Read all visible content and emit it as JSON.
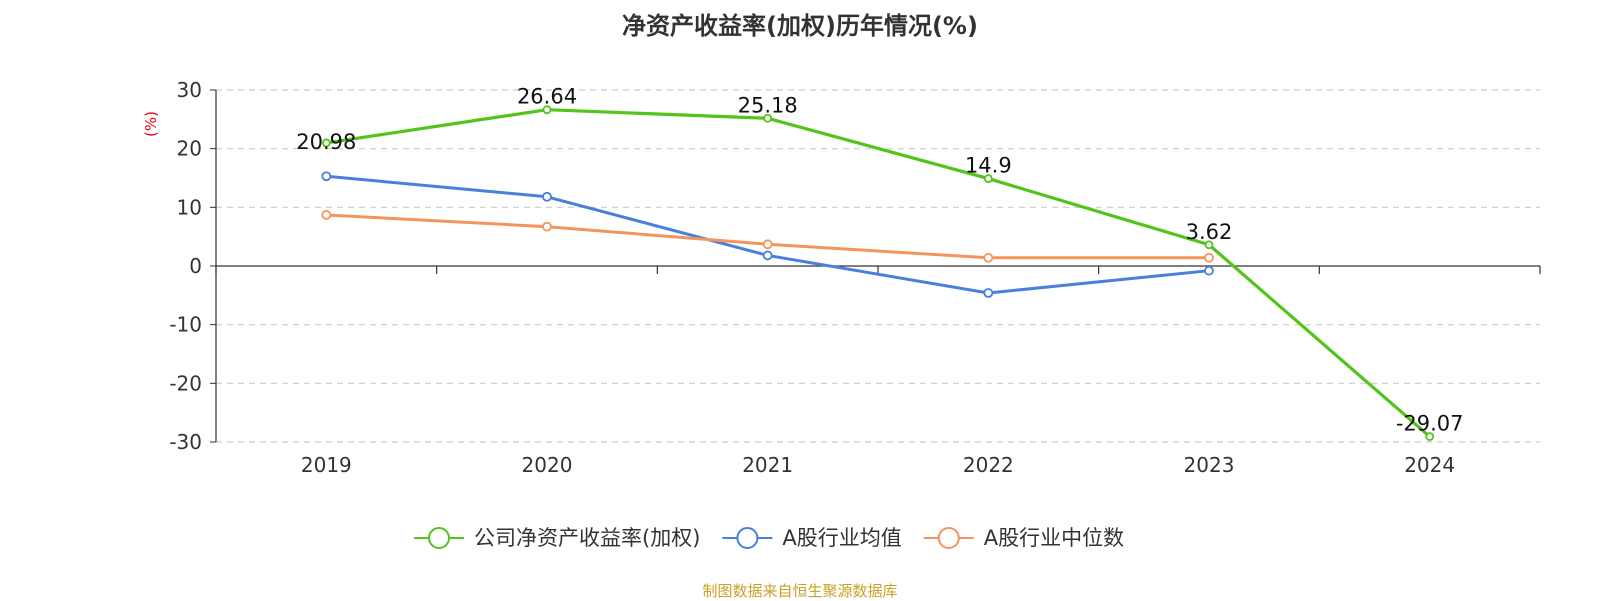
{
  "chart_data": {
    "type": "line",
    "title": "净资产收益率(加权)历年情况(%)",
    "ylabel": "(%)",
    "xlabel": "",
    "categories": [
      "2019",
      "2020",
      "2021",
      "2022",
      "2023",
      "2024"
    ],
    "ylim": [
      -30,
      30
    ],
    "yticks": [
      30,
      20,
      10,
      0,
      -10,
      -20,
      -30
    ],
    "grid": true,
    "legend_position": "bottom",
    "series": [
      {
        "name": "公司净资产收益率(加权)",
        "color": "#52c41a",
        "values": [
          20.98,
          26.64,
          25.18,
          14.9,
          3.62,
          -29.07
        ],
        "labels": [
          "20.98",
          "26.64",
          "25.18",
          "14.9",
          "3.62",
          "-29.07"
        ]
      },
      {
        "name": "A股行业均值",
        "color": "#4a7fdc",
        "values": [
          15.3,
          11.8,
          1.8,
          -4.6,
          -0.8,
          null
        ]
      },
      {
        "name": "A股行业中位数",
        "color": "#f5935c",
        "values": [
          8.7,
          6.7,
          3.7,
          1.4,
          1.4,
          null
        ]
      }
    ]
  },
  "source_note": "制图数据来自恒生聚源数据库",
  "colors": {
    "axis": "#333333",
    "grid": "#cccccc",
    "ylabel": "#e8000b",
    "tick_text": "#333333"
  }
}
